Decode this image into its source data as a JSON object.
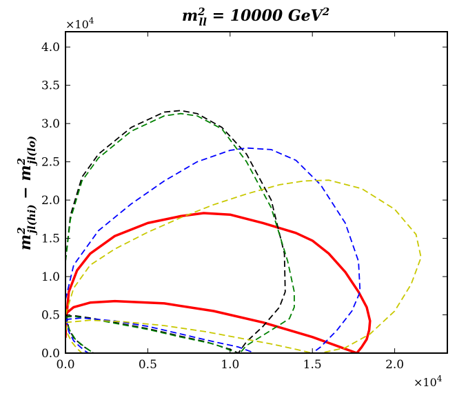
{
  "chart_data": {
    "type": "line",
    "title": {
      "base": "m",
      "sup": "2",
      "sub": "ll",
      "rest": " = 10000 GeV",
      "rest_sup": "2"
    },
    "ylabel": {
      "a_base": "m",
      "a_sup": "2",
      "a_sub": "jl(hi)",
      "op": " − ",
      "b_base": "m",
      "b_sup": "2",
      "b_sub": "jl(lo)"
    },
    "x_multiplier": "×10",
    "x_multiplier_exp": "4",
    "y_multiplier": "×10",
    "y_multiplier_exp": "4",
    "xlim": [
      0,
      23200
    ],
    "ylim": [
      0,
      42000
    ],
    "x_ticks": [
      0,
      5000,
      10000,
      15000,
      20000
    ],
    "x_tick_labels": [
      "0.0",
      "0.5",
      "1.0",
      "1.5",
      "2.0"
    ],
    "y_ticks": [
      0,
      5000,
      10000,
      15000,
      20000,
      25000,
      30000,
      35000,
      40000
    ],
    "y_tick_labels": [
      "0.0",
      "0.5",
      "1.0",
      "1.5",
      "2.0",
      "2.5",
      "3.0",
      "3.5",
      "4.0"
    ],
    "grid": false,
    "legend": "none",
    "series": [
      {
        "color": "#ff0000",
        "style": "solid",
        "x": [
          0,
          50,
          200,
          700,
          1500,
          3000,
          5000,
          7000,
          8400,
          10000,
          12000,
          14000,
          15000,
          16000,
          17000,
          17800,
          18300,
          18500,
          18450,
          18300,
          18000,
          17700,
          15000,
          12000,
          9000,
          6000,
          3000,
          1500,
          500,
          100,
          0
        ],
        "y": [
          2000,
          4500,
          8000,
          10800,
          13000,
          15300,
          17000,
          17900,
          18300,
          18100,
          17000,
          15700,
          14700,
          13000,
          10600,
          8000,
          6000,
          4200,
          3000,
          1800,
          800,
          0,
          2100,
          4000,
          5500,
          6500,
          6800,
          6600,
          6000,
          5300,
          4500
        ]
      },
      {
        "color": "#000000",
        "style": "dashed",
        "x": [
          0,
          300,
          1000,
          2000,
          4000,
          6000,
          7000,
          8000,
          9500,
          11000,
          12500,
          13300,
          13350,
          13000,
          12000,
          11000,
          10500
        ],
        "y": [
          12000,
          18000,
          23000,
          26000,
          29500,
          31500,
          31700,
          31300,
          29500,
          26000,
          20000,
          13000,
          8000,
          6000,
          3500,
          1500,
          0
        ]
      },
      {
        "color": "#008000",
        "style": "dashed",
        "x": [
          0,
          300,
          1000,
          2000,
          4000,
          6000,
          7000,
          8000,
          9500,
          11000,
          12500,
          13500,
          13900,
          13900,
          13600,
          12500,
          11000,
          10600
        ],
        "y": [
          12000,
          17500,
          22500,
          25500,
          29000,
          31000,
          31300,
          31000,
          29300,
          25000,
          19000,
          12000,
          8000,
          6000,
          4500,
          3000,
          1000,
          0
        ]
      },
      {
        "color": "#0000ff",
        "style": "dashed",
        "x": [
          0,
          500,
          2000,
          4000,
          6000,
          8000,
          10000,
          11000,
          12500,
          14000,
          15500,
          17000,
          17800,
          17900,
          17400,
          16500,
          15500,
          15000
        ],
        "y": [
          7000,
          11500,
          16000,
          19500,
          22500,
          25000,
          26500,
          26800,
          26600,
          25200,
          22000,
          17000,
          12000,
          8000,
          5500,
          3000,
          800,
          0
        ]
      },
      {
        "color": "#c8c800",
        "style": "dashed",
        "x": [
          0,
          500,
          1500,
          3000,
          5000,
          7000,
          9000,
          11000,
          13000,
          14500,
          16000,
          18000,
          20000,
          21300,
          21600,
          21000,
          20000,
          18500,
          17000,
          15500
        ],
        "y": [
          5000,
          8500,
          11500,
          13600,
          15800,
          17700,
          19400,
          20800,
          22000,
          22500,
          22600,
          21500,
          18800,
          15500,
          12500,
          9000,
          5500,
          2500,
          700,
          0
        ]
      },
      {
        "color": "#000000",
        "style": "dashed",
        "x": [
          50,
          200,
          500,
          1000,
          1500,
          1700
        ],
        "y": [
          5000,
          3200,
          2000,
          1000,
          300,
          0
        ]
      },
      {
        "color": "#008000",
        "style": "dashed",
        "x": [
          0,
          250,
          600,
          1100,
          1500,
          1700
        ],
        "y": [
          4800,
          3000,
          1800,
          900,
          300,
          0
        ]
      },
      {
        "color": "#0000ff",
        "style": "dashed",
        "x": [
          50,
          200,
          500,
          900,
          1200,
          1400
        ],
        "y": [
          4500,
          2800,
          1600,
          800,
          250,
          0
        ]
      },
      {
        "color": "#c8c800",
        "style": "dashed",
        "x": [
          0,
          150,
          400,
          700,
          900,
          1000
        ],
        "y": [
          3800,
          2400,
          1400,
          600,
          200,
          0
        ]
      },
      {
        "color": "#000000",
        "style": "dashed",
        "x": [
          0,
          500,
          1500,
          3000,
          5000,
          7000,
          8500,
          10000,
          10500
        ],
        "y": [
          4800,
          4900,
          4600,
          4000,
          3200,
          2200,
          1500,
          500,
          0
        ]
      },
      {
        "color": "#008000",
        "style": "dashed",
        "x": [
          0,
          500,
          1500,
          3000,
          5000,
          7000,
          9000,
          10000,
          10400
        ],
        "y": [
          4700,
          4800,
          4500,
          3900,
          3100,
          2100,
          1200,
          400,
          0
        ]
      },
      {
        "color": "#0000ff",
        "style": "dashed",
        "x": [
          0,
          1000,
          3000,
          5000,
          7000,
          9000,
          10500,
          11500
        ],
        "y": [
          4400,
          4600,
          4200,
          3500,
          2500,
          1500,
          800,
          0
        ]
      },
      {
        "color": "#c8c800",
        "style": "dashed",
        "x": [
          0,
          1500,
          3500,
          6000,
          8500,
          10500,
          12500,
          14000,
          15000
        ],
        "y": [
          4000,
          4300,
          4100,
          3600,
          2800,
          2000,
          1200,
          500,
          0
        ]
      }
    ]
  }
}
